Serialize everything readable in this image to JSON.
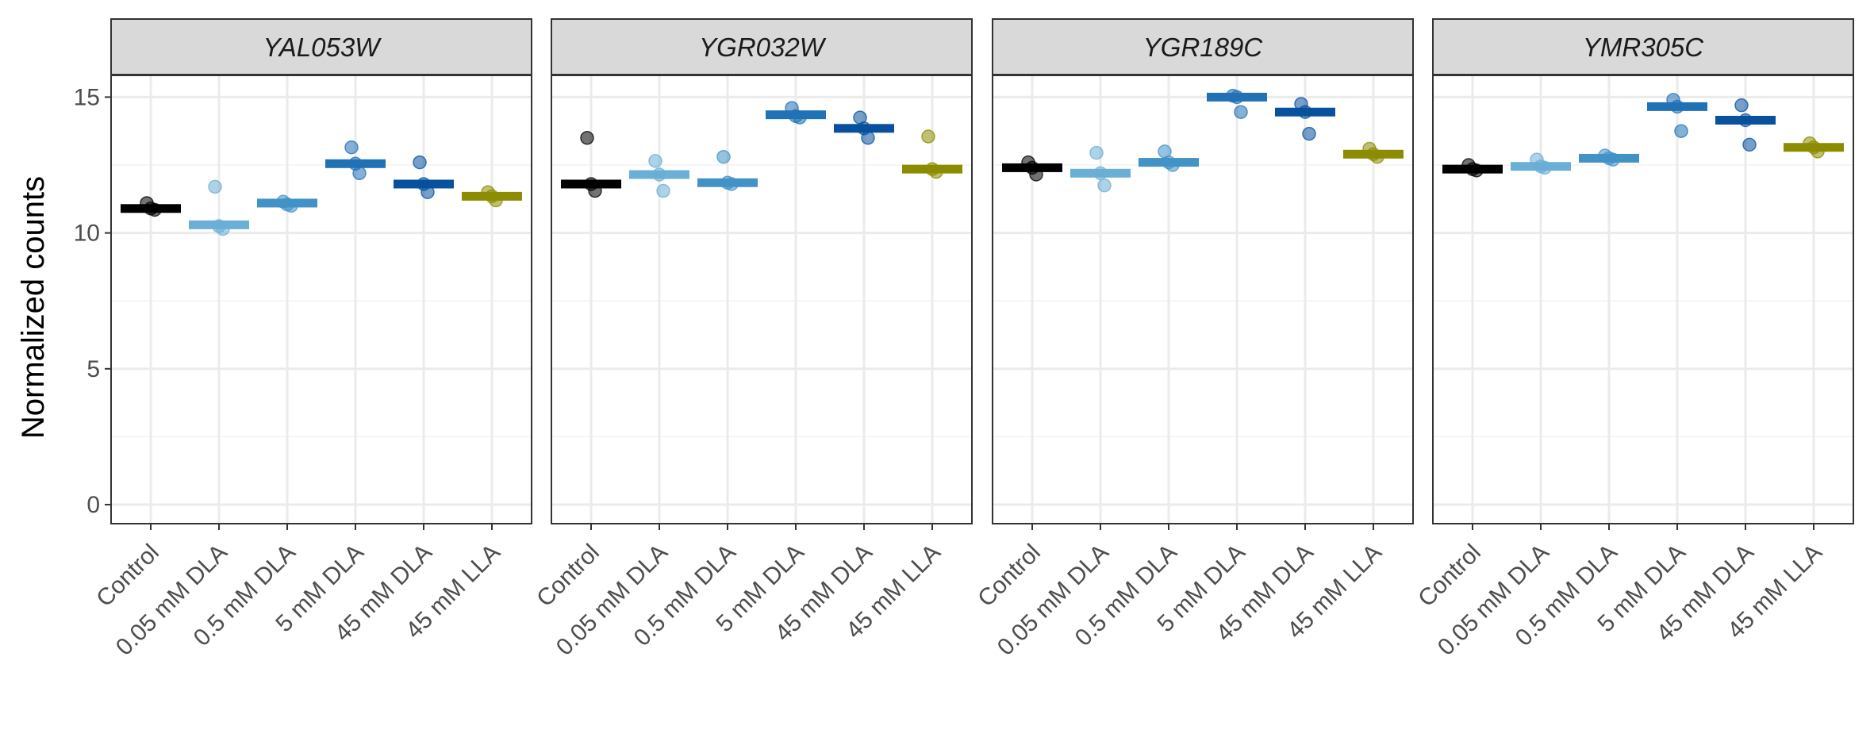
{
  "chart_data": {
    "type": "scatter",
    "ylabel": "Normalized counts",
    "xlabel": "",
    "ylim": [
      -0.7,
      15.8
    ],
    "yticks": [
      0,
      5,
      10,
      15
    ],
    "grid": true,
    "legend": "none",
    "categories": [
      "Control",
      "0.05 mM DLA",
      "0.5 mM DLA",
      "5 mM DLA",
      "45 mM DLA",
      "45 mM LLA"
    ],
    "colors": [
      "#000000",
      "#6baed6",
      "#4292c6",
      "#2171b5",
      "#08519c",
      "#8c8c00"
    ],
    "panels": [
      {
        "title": "YAL053W",
        "means": [
          10.9,
          10.3,
          11.1,
          12.55,
          11.8,
          11.35
        ],
        "points": [
          [
            11.1,
            10.9,
            10.85
          ],
          [
            11.7,
            10.25,
            10.15
          ],
          [
            11.15,
            11.05,
            11.0
          ],
          [
            13.15,
            12.55,
            12.2
          ],
          [
            12.6,
            11.8,
            11.5
          ],
          [
            11.5,
            11.35,
            11.2
          ]
        ]
      },
      {
        "title": "YGR032W",
        "means": [
          11.8,
          12.15,
          11.85,
          14.35,
          13.85,
          12.35
        ],
        "points": [
          [
            13.5,
            11.8,
            11.55
          ],
          [
            12.65,
            12.15,
            11.55
          ],
          [
            12.8,
            11.85,
            11.8
          ],
          [
            14.6,
            14.3,
            14.25
          ],
          [
            14.25,
            13.85,
            13.5
          ],
          [
            13.55,
            12.35,
            12.25
          ]
        ]
      },
      {
        "title": "YGR189C",
        "means": [
          12.4,
          12.2,
          12.6,
          15.0,
          14.45,
          12.9
        ],
        "points": [
          [
            12.6,
            12.4,
            12.15
          ],
          [
            12.95,
            12.2,
            11.75
          ],
          [
            13.0,
            12.6,
            12.5
          ],
          [
            15.05,
            15.0,
            14.45
          ],
          [
            14.75,
            14.45,
            13.65
          ],
          [
            13.1,
            12.9,
            12.8
          ]
        ]
      },
      {
        "title": "YMR305C",
        "means": [
          12.35,
          12.45,
          12.75,
          14.65,
          14.15,
          13.15
        ],
        "points": [
          [
            12.5,
            12.35,
            12.3
          ],
          [
            12.7,
            12.45,
            12.4
          ],
          [
            12.85,
            12.75,
            12.7
          ],
          [
            14.9,
            14.65,
            13.75
          ],
          [
            14.7,
            14.15,
            13.25
          ],
          [
            13.3,
            13.15,
            13.0
          ]
        ]
      }
    ]
  }
}
